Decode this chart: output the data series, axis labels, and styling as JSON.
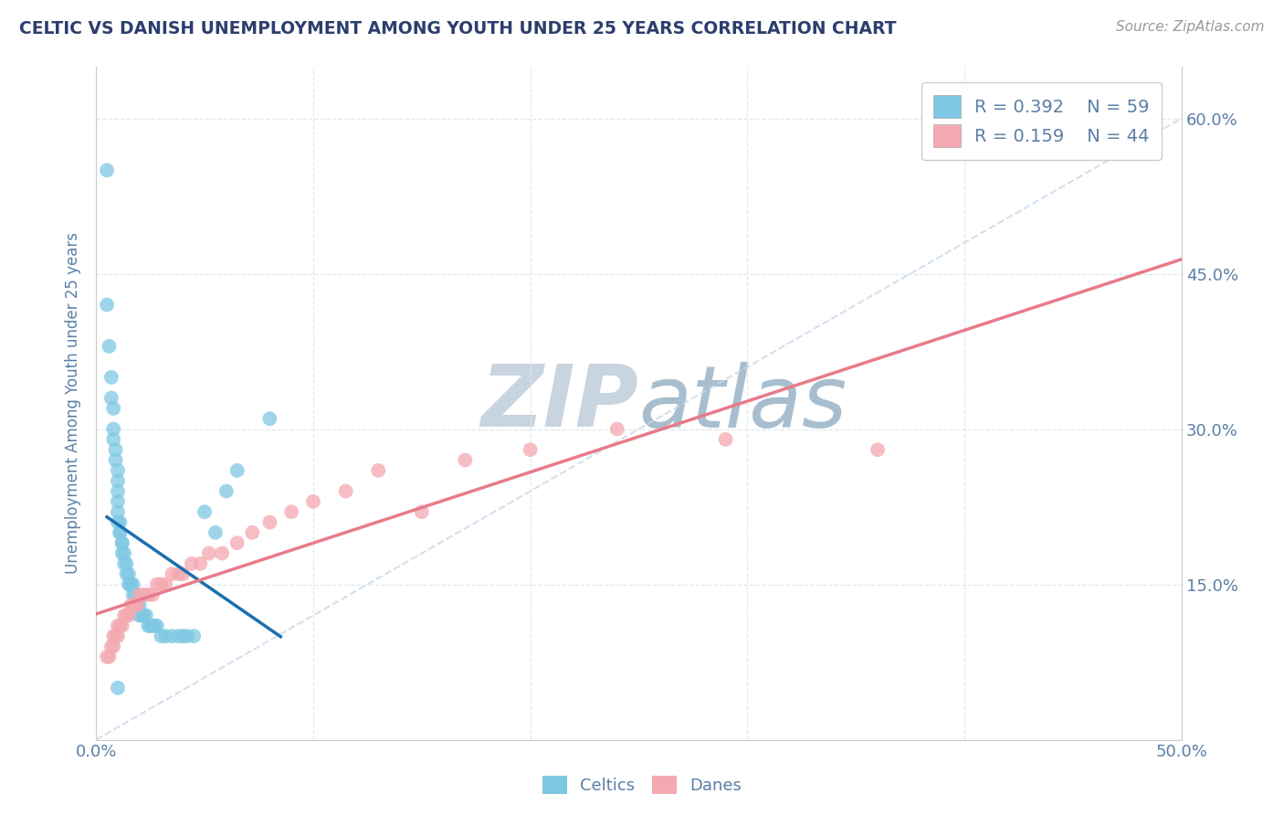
{
  "title": "CELTIC VS DANISH UNEMPLOYMENT AMONG YOUTH UNDER 25 YEARS CORRELATION CHART",
  "source": "Source: ZipAtlas.com",
  "ylabel": "Unemployment Among Youth under 25 years",
  "xlim": [
    0.0,
    0.5
  ],
  "ylim": [
    0.0,
    0.65
  ],
  "legend_r1": "R = 0.392",
  "legend_n1": "N = 59",
  "legend_r2": "R = 0.159",
  "legend_n2": "N = 44",
  "celtics_color": "#7ec8e3",
  "danes_color": "#f4a9b0",
  "celtics_line_color": "#1a6faf",
  "danes_line_color": "#e87b8a",
  "diagonal_line_color": "#c8d8e8",
  "watermark_text": "ZIPatlas",
  "watermark_color": "#d8e4ee",
  "background_color": "#ffffff",
  "title_color": "#2c3e6e",
  "axis_label_color": "#5b7fa6",
  "tick_color": "#5b7fa6",
  "celtics_x": [
    0.005,
    0.005,
    0.006,
    0.007,
    0.007,
    0.008,
    0.008,
    0.008,
    0.009,
    0.009,
    0.01,
    0.01,
    0.01,
    0.01,
    0.01,
    0.01,
    0.011,
    0.011,
    0.011,
    0.012,
    0.012,
    0.012,
    0.013,
    0.013,
    0.014,
    0.014,
    0.015,
    0.015,
    0.016,
    0.016,
    0.017,
    0.017,
    0.018,
    0.018,
    0.019,
    0.019,
    0.02,
    0.02,
    0.021,
    0.022,
    0.023,
    0.024,
    0.025,
    0.026,
    0.027,
    0.028,
    0.03,
    0.032,
    0.035,
    0.038,
    0.04,
    0.042,
    0.045,
    0.05,
    0.055,
    0.06,
    0.065,
    0.08,
    0.01
  ],
  "celtics_y": [
    0.55,
    0.42,
    0.38,
    0.35,
    0.33,
    0.32,
    0.3,
    0.29,
    0.28,
    0.27,
    0.26,
    0.25,
    0.24,
    0.23,
    0.22,
    0.21,
    0.21,
    0.2,
    0.2,
    0.19,
    0.19,
    0.18,
    0.18,
    0.17,
    0.17,
    0.16,
    0.16,
    0.15,
    0.15,
    0.15,
    0.15,
    0.14,
    0.14,
    0.13,
    0.13,
    0.13,
    0.13,
    0.12,
    0.12,
    0.12,
    0.12,
    0.11,
    0.11,
    0.11,
    0.11,
    0.11,
    0.1,
    0.1,
    0.1,
    0.1,
    0.1,
    0.1,
    0.1,
    0.22,
    0.2,
    0.24,
    0.26,
    0.31,
    0.05
  ],
  "danes_x": [
    0.005,
    0.006,
    0.007,
    0.008,
    0.008,
    0.009,
    0.01,
    0.01,
    0.011,
    0.012,
    0.013,
    0.014,
    0.015,
    0.016,
    0.017,
    0.018,
    0.019,
    0.02,
    0.022,
    0.024,
    0.026,
    0.028,
    0.03,
    0.032,
    0.035,
    0.038,
    0.04,
    0.044,
    0.048,
    0.052,
    0.058,
    0.065,
    0.072,
    0.08,
    0.09,
    0.1,
    0.115,
    0.13,
    0.15,
    0.17,
    0.2,
    0.24,
    0.29,
    0.36
  ],
  "danes_y": [
    0.08,
    0.08,
    0.09,
    0.09,
    0.1,
    0.1,
    0.1,
    0.11,
    0.11,
    0.11,
    0.12,
    0.12,
    0.12,
    0.13,
    0.13,
    0.13,
    0.13,
    0.14,
    0.14,
    0.14,
    0.14,
    0.15,
    0.15,
    0.15,
    0.16,
    0.16,
    0.16,
    0.17,
    0.17,
    0.18,
    0.18,
    0.19,
    0.2,
    0.21,
    0.22,
    0.23,
    0.24,
    0.26,
    0.22,
    0.27,
    0.28,
    0.3,
    0.29,
    0.28
  ]
}
